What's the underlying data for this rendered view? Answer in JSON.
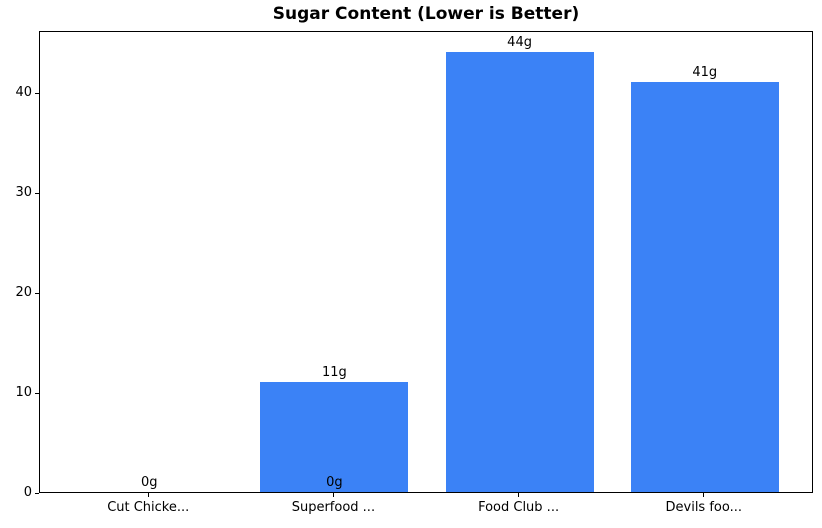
{
  "chart_data": {
    "type": "bar",
    "title": "Sugar Content (Lower is Better)",
    "categories": [
      "Cut Chicke...",
      "Superfood ...",
      "Food Club ...",
      "Devils foo..."
    ],
    "values": [
      0,
      11,
      44,
      41
    ],
    "bar_labels": [
      "0g",
      "11g",
      "44g",
      "41g"
    ],
    "extra_bar_labels": [
      {
        "category_index": 1,
        "text": "0g",
        "at_value": 0
      }
    ],
    "unit_suffix": "g",
    "xlabel": "",
    "ylabel": "",
    "yticks": [
      0,
      10,
      20,
      30,
      40
    ],
    "ylim": [
      0,
      46.2
    ],
    "xlim": [
      -0.59,
      3.59
    ],
    "bar_width_fraction": 0.8,
    "grid": false,
    "legend": false,
    "colors": {
      "bar": "#3b82f6",
      "text": "#000000",
      "axis": "#000000",
      "background": "#ffffff"
    }
  }
}
